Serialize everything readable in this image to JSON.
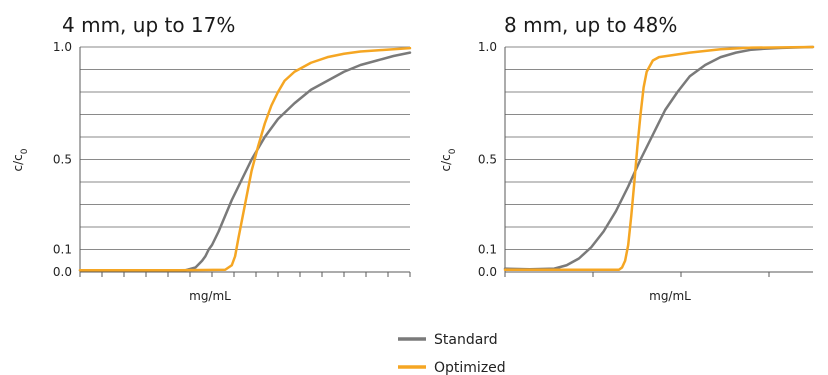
{
  "colors": {
    "standard": "#7a7a7a",
    "optimized": "#f5a623",
    "grid": "#8a8a8a"
  },
  "legend": {
    "standard": "Standard",
    "optimized": "Optimized"
  },
  "chart_data": [
    {
      "type": "line",
      "title": "4 mm, up to 17%",
      "xlabel": "mg/mL",
      "ylabel": "c/c0",
      "ylabel_main": "c/c",
      "ylabel_sub": "0",
      "ylim": [
        0,
        1
      ],
      "xlim": [
        0,
        1
      ],
      "yticks": [
        {
          "value": 0,
          "label": "0.0"
        },
        {
          "value": 0.1,
          "label": "0.1"
        },
        {
          "value": 0.5,
          "label": "0.5"
        },
        {
          "value": 1,
          "label": "1.0"
        }
      ],
      "ygrid": [
        0.1,
        0.2,
        0.3,
        0.4,
        0.5,
        0.6,
        0.7,
        0.8,
        0.9,
        1.0
      ],
      "xticks": [
        0.0,
        0.0667,
        0.1333,
        0.2,
        0.2667,
        0.3333,
        0.4,
        0.4667,
        0.5333,
        0.6,
        0.6667,
        0.7333,
        0.8,
        0.8667,
        0.9333,
        1.0
      ],
      "series": [
        {
          "name": "Standard",
          "x": [
            0.0,
            0.2,
            0.32,
            0.35,
            0.37,
            0.38,
            0.39,
            0.4,
            0.42,
            0.44,
            0.46,
            0.48,
            0.5,
            0.52,
            0.56,
            0.6,
            0.65,
            0.7,
            0.75,
            0.8,
            0.85,
            0.9,
            0.95,
            1.0
          ],
          "y": [
            0.008,
            0.008,
            0.008,
            0.02,
            0.05,
            0.07,
            0.1,
            0.12,
            0.18,
            0.25,
            0.32,
            0.38,
            0.44,
            0.5,
            0.6,
            0.68,
            0.75,
            0.81,
            0.85,
            0.89,
            0.92,
            0.94,
            0.96,
            0.975
          ]
        },
        {
          "name": "Optimized",
          "x": [
            0.0,
            0.3,
            0.44,
            0.46,
            0.47,
            0.48,
            0.5,
            0.52,
            0.54,
            0.56,
            0.58,
            0.6,
            0.62,
            0.65,
            0.7,
            0.75,
            0.8,
            0.85,
            0.9,
            0.95,
            1.0
          ],
          "y": [
            0.008,
            0.008,
            0.01,
            0.03,
            0.07,
            0.15,
            0.3,
            0.45,
            0.56,
            0.66,
            0.74,
            0.8,
            0.85,
            0.89,
            0.93,
            0.955,
            0.97,
            0.98,
            0.985,
            0.99,
            0.995
          ]
        }
      ]
    },
    {
      "type": "line",
      "title": "8 mm, up to 48%",
      "xlabel": "mg/mL",
      "ylabel": "c/c0",
      "ylabel_main": "c/c",
      "ylabel_sub": "0",
      "ylim": [
        0,
        1
      ],
      "xlim": [
        0,
        1
      ],
      "yticks": [
        {
          "value": 0,
          "label": "0.0"
        },
        {
          "value": 0.1,
          "label": "0.1"
        },
        {
          "value": 0.5,
          "label": "0.5"
        },
        {
          "value": 1,
          "label": "1.0"
        }
      ],
      "ygrid": [
        0.1,
        0.2,
        0.3,
        0.4,
        0.5,
        0.6,
        0.7,
        0.8,
        0.9,
        1.0
      ],
      "xticks": [
        0.0,
        0.2857,
        0.5714,
        0.8571
      ],
      "series": [
        {
          "name": "Standard",
          "x": [
            0.0,
            0.08,
            0.16,
            0.2,
            0.24,
            0.28,
            0.32,
            0.36,
            0.4,
            0.44,
            0.48,
            0.52,
            0.56,
            0.6,
            0.65,
            0.7,
            0.75,
            0.8,
            0.85,
            0.9,
            1.0
          ],
          "y": [
            0.015,
            0.012,
            0.015,
            0.03,
            0.06,
            0.11,
            0.18,
            0.27,
            0.38,
            0.5,
            0.61,
            0.72,
            0.8,
            0.87,
            0.92,
            0.955,
            0.975,
            0.988,
            0.993,
            0.996,
            1.0
          ],
          "note": ""
        },
        {
          "name": "Optimized",
          "x": [
            0.0,
            0.3,
            0.37,
            0.38,
            0.39,
            0.4,
            0.41,
            0.42,
            0.43,
            0.44,
            0.45,
            0.46,
            0.48,
            0.5,
            0.55,
            0.6,
            0.7,
            0.8,
            1.0
          ],
          "y": [
            0.01,
            0.01,
            0.01,
            0.02,
            0.05,
            0.12,
            0.25,
            0.4,
            0.56,
            0.7,
            0.82,
            0.89,
            0.94,
            0.955,
            0.965,
            0.975,
            0.99,
            0.997,
            1.0
          ]
        }
      ]
    }
  ]
}
